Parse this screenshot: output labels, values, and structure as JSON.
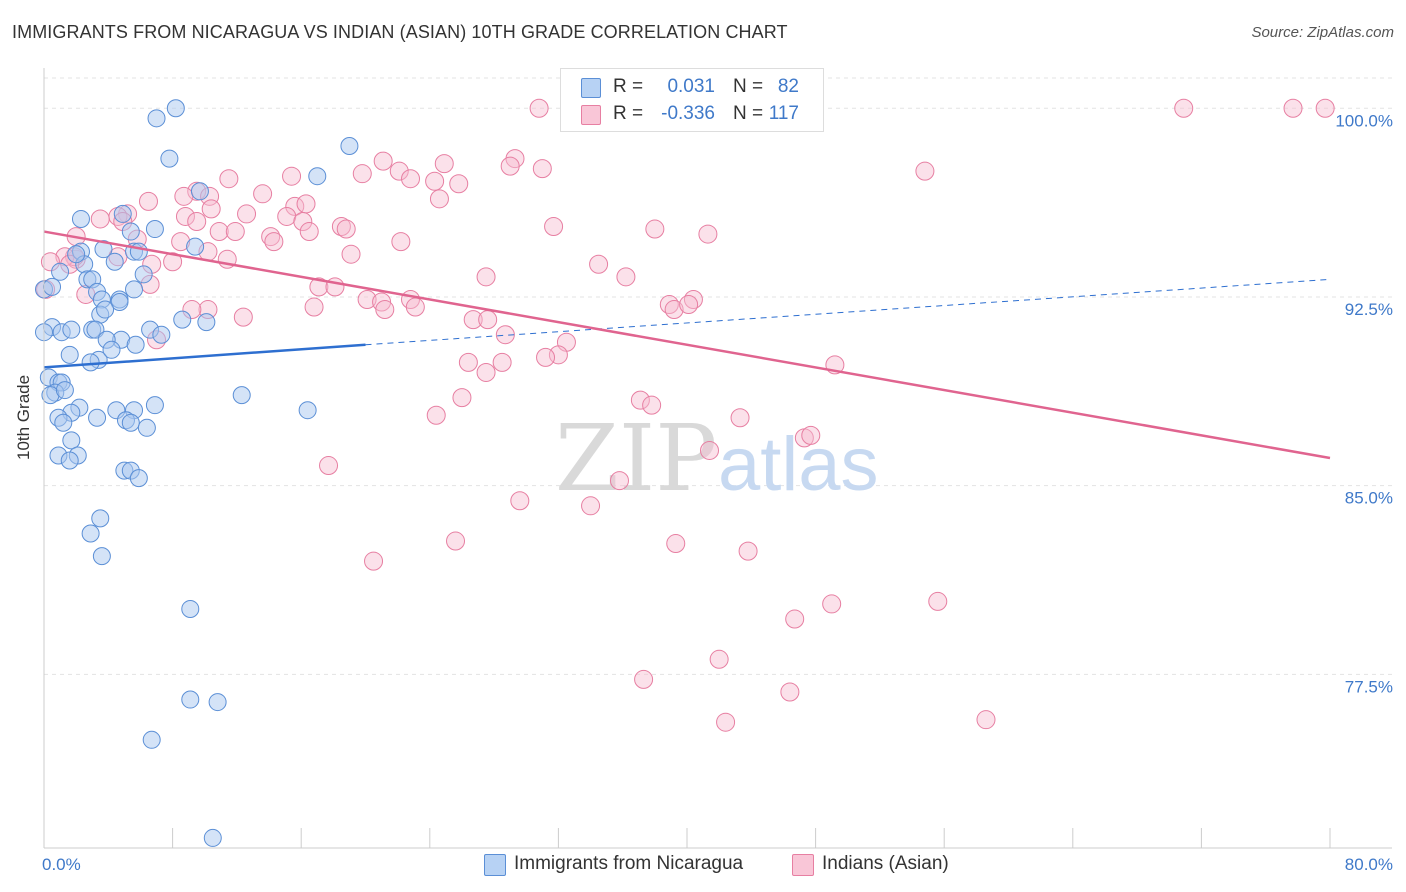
{
  "title": "IMMIGRANTS FROM NICARAGUA VS INDIAN (ASIAN) 10TH GRADE CORRELATION CHART",
  "source": "Source: ZipAtlas.com",
  "watermark": {
    "zip": "ZIP",
    "atlas": "atlas"
  },
  "colors": {
    "blue_fill": "#a9c8ef",
    "blue_stroke": "#5b8fd6",
    "blue_line": "#2e6fd0",
    "pink_fill": "#f7bcd0",
    "pink_stroke": "#e77fa2",
    "pink_line": "#e0648f",
    "tick_text": "#3f79c9",
    "grid": "#e3e3e3"
  },
  "legend": {
    "rows": [
      {
        "r_label": "R =",
        "r_value": "0.031",
        "n_label": "N =",
        "n_value": "82"
      },
      {
        "r_label": "R =",
        "r_value": "-0.336",
        "n_label": "N =",
        "n_value": "117"
      }
    ]
  },
  "chart_data": {
    "type": "scatter",
    "title": "IMMIGRANTS FROM NICARAGUA VS INDIAN (ASIAN) 10TH GRADE CORRELATION CHART",
    "xlabel": "",
    "ylabel": "10th Grade",
    "xlim": [
      0,
      80
    ],
    "ylim": [
      70.6,
      101.6
    ],
    "x_tick_labels": [
      "0.0%",
      "80.0%"
    ],
    "y_ticks": [
      77.5,
      85.0,
      92.5,
      100.0
    ],
    "y_tick_labels": [
      "77.5%",
      "85.0%",
      "92.5%",
      "100.0%"
    ],
    "grid": true,
    "legend_placement": "top-center",
    "series": [
      {
        "name": "Immigrants from Nicaragua",
        "color": "#a9c8ef",
        "trend": {
          "x0": 0,
          "y0": 89.7,
          "x1": 20,
          "y1": 90.6,
          "dashed_to_x": 80,
          "dashed_to_y": 93.2
        },
        "points": [
          [
            8.2,
            100.0
          ],
          [
            7.0,
            99.6
          ],
          [
            7.8,
            98.0
          ],
          [
            19.0,
            98.5
          ],
          [
            17.0,
            97.3
          ],
          [
            9.7,
            96.7
          ],
          [
            4.9,
            95.8
          ],
          [
            2.3,
            95.6
          ],
          [
            6.9,
            95.2
          ],
          [
            5.4,
            95.1
          ],
          [
            9.4,
            94.5
          ],
          [
            2.3,
            94.3
          ],
          [
            5.6,
            94.3
          ],
          [
            5.9,
            94.3
          ],
          [
            3.7,
            94.4
          ],
          [
            4.4,
            93.9
          ],
          [
            2.5,
            93.8
          ],
          [
            6.2,
            93.4
          ],
          [
            2.7,
            93.2
          ],
          [
            3.0,
            93.2
          ],
          [
            0.0,
            92.8
          ],
          [
            3.3,
            92.7
          ],
          [
            5.6,
            92.8
          ],
          [
            3.6,
            92.4
          ],
          [
            4.7,
            92.4
          ],
          [
            4.7,
            92.3
          ],
          [
            3.5,
            91.8
          ],
          [
            8.6,
            91.6
          ],
          [
            10.1,
            91.5
          ],
          [
            0.5,
            91.3
          ],
          [
            1.1,
            91.1
          ],
          [
            0.0,
            91.1
          ],
          [
            1.7,
            91.2
          ],
          [
            3.0,
            91.2
          ],
          [
            3.2,
            91.2
          ],
          [
            6.6,
            91.2
          ],
          [
            7.3,
            91.0
          ],
          [
            4.8,
            90.8
          ],
          [
            3.9,
            90.8
          ],
          [
            5.7,
            90.6
          ],
          [
            1.6,
            90.2
          ],
          [
            3.4,
            90.0
          ],
          [
            2.9,
            89.9
          ],
          [
            0.3,
            89.3
          ],
          [
            0.9,
            89.1
          ],
          [
            1.1,
            89.1
          ],
          [
            0.7,
            88.7
          ],
          [
            0.4,
            88.6
          ],
          [
            12.3,
            88.6
          ],
          [
            6.9,
            88.2
          ],
          [
            2.2,
            88.1
          ],
          [
            1.7,
            87.9
          ],
          [
            4.5,
            88.0
          ],
          [
            5.6,
            88.0
          ],
          [
            16.4,
            88.0
          ],
          [
            0.9,
            87.7
          ],
          [
            3.3,
            87.7
          ],
          [
            5.1,
            87.6
          ],
          [
            1.2,
            87.5
          ],
          [
            5.4,
            87.5
          ],
          [
            6.4,
            87.3
          ],
          [
            1.7,
            86.8
          ],
          [
            0.9,
            86.2
          ],
          [
            2.1,
            86.2
          ],
          [
            1.6,
            86.0
          ],
          [
            5.0,
            85.6
          ],
          [
            5.4,
            85.6
          ],
          [
            5.9,
            85.3
          ],
          [
            3.5,
            83.7
          ],
          [
            2.9,
            83.1
          ],
          [
            3.6,
            82.2
          ],
          [
            9.1,
            80.1
          ],
          [
            9.1,
            76.5
          ],
          [
            10.8,
            76.4
          ],
          [
            6.7,
            74.9
          ],
          [
            10.5,
            71.0
          ],
          [
            0.5,
            92.9
          ],
          [
            1.0,
            93.5
          ],
          [
            2.0,
            94.2
          ],
          [
            3.8,
            92.0
          ],
          [
            4.2,
            90.4
          ],
          [
            1.3,
            88.8
          ]
        ]
      },
      {
        "name": "Indians (Asian)",
        "color": "#f7bcd0",
        "trend": {
          "x0": 0,
          "y0": 95.1,
          "x1": 80,
          "y1": 86.1
        },
        "points": [
          [
            30.8,
            100.0
          ],
          [
            47.8,
            100.0
          ],
          [
            70.9,
            100.0
          ],
          [
            77.7,
            100.0
          ],
          [
            79.7,
            100.0
          ],
          [
            21.1,
            97.9
          ],
          [
            24.9,
            97.8
          ],
          [
            29.3,
            98.0
          ],
          [
            29.0,
            97.7
          ],
          [
            31.0,
            97.6
          ],
          [
            22.1,
            97.5
          ],
          [
            22.8,
            97.2
          ],
          [
            24.3,
            97.1
          ],
          [
            25.8,
            97.0
          ],
          [
            19.8,
            97.4
          ],
          [
            15.4,
            97.3
          ],
          [
            11.5,
            97.2
          ],
          [
            54.8,
            97.5
          ],
          [
            6.5,
            96.3
          ],
          [
            9.5,
            96.7
          ],
          [
            10.3,
            96.5
          ],
          [
            13.6,
            96.6
          ],
          [
            8.7,
            96.5
          ],
          [
            15.6,
            96.1
          ],
          [
            16.3,
            96.2
          ],
          [
            24.6,
            96.4
          ],
          [
            10.4,
            96.0
          ],
          [
            5.2,
            95.8
          ],
          [
            12.6,
            95.8
          ],
          [
            8.8,
            95.7
          ],
          [
            4.6,
            95.7
          ],
          [
            3.5,
            95.6
          ],
          [
            15.1,
            95.7
          ],
          [
            4.9,
            95.5
          ],
          [
            9.5,
            95.5
          ],
          [
            16.1,
            95.5
          ],
          [
            18.5,
            95.3
          ],
          [
            31.7,
            95.3
          ],
          [
            10.9,
            95.1
          ],
          [
            11.9,
            95.1
          ],
          [
            16.5,
            95.1
          ],
          [
            18.8,
            95.2
          ],
          [
            38.0,
            95.2
          ],
          [
            41.3,
            95.0
          ],
          [
            14.1,
            94.9
          ],
          [
            5.8,
            94.8
          ],
          [
            2.0,
            94.9
          ],
          [
            8.5,
            94.7
          ],
          [
            14.3,
            94.7
          ],
          [
            22.2,
            94.7
          ],
          [
            10.2,
            94.3
          ],
          [
            11.4,
            94.0
          ],
          [
            4.6,
            94.1
          ],
          [
            2.0,
            94.0
          ],
          [
            1.9,
            94.1
          ],
          [
            1.3,
            94.1
          ],
          [
            0.4,
            93.9
          ],
          [
            1.6,
            93.8
          ],
          [
            6.7,
            93.8
          ],
          [
            8.0,
            93.9
          ],
          [
            19.1,
            94.2
          ],
          [
            34.5,
            93.8
          ],
          [
            27.5,
            93.3
          ],
          [
            36.2,
            93.3
          ],
          [
            6.6,
            93.0
          ],
          [
            17.1,
            92.9
          ],
          [
            18.1,
            92.9
          ],
          [
            0.1,
            92.8
          ],
          [
            2.6,
            92.6
          ],
          [
            20.1,
            92.4
          ],
          [
            21.0,
            92.3
          ],
          [
            22.8,
            92.4
          ],
          [
            38.9,
            92.2
          ],
          [
            40.4,
            92.4
          ],
          [
            16.8,
            92.1
          ],
          [
            21.2,
            92.0
          ],
          [
            23.1,
            92.1
          ],
          [
            39.2,
            92.0
          ],
          [
            40.1,
            92.2
          ],
          [
            10.2,
            92.0
          ],
          [
            12.4,
            91.7
          ],
          [
            26.7,
            91.6
          ],
          [
            27.6,
            91.6
          ],
          [
            28.7,
            91.0
          ],
          [
            32.5,
            90.7
          ],
          [
            7.0,
            90.8
          ],
          [
            32.0,
            90.2
          ],
          [
            31.2,
            90.1
          ],
          [
            26.4,
            89.9
          ],
          [
            28.5,
            89.9
          ],
          [
            49.2,
            89.8
          ],
          [
            27.5,
            89.5
          ],
          [
            37.1,
            88.4
          ],
          [
            26.0,
            88.5
          ],
          [
            37.8,
            88.2
          ],
          [
            24.4,
            87.8
          ],
          [
            43.3,
            87.7
          ],
          [
            47.3,
            86.9
          ],
          [
            47.7,
            87.0
          ],
          [
            41.4,
            86.4
          ],
          [
            17.7,
            85.8
          ],
          [
            35.8,
            85.2
          ],
          [
            29.6,
            84.4
          ],
          [
            34.0,
            84.2
          ],
          [
            25.6,
            82.8
          ],
          [
            39.3,
            82.7
          ],
          [
            43.8,
            82.4
          ],
          [
            20.5,
            82.0
          ],
          [
            49.0,
            80.3
          ],
          [
            55.6,
            80.4
          ],
          [
            46.7,
            79.7
          ],
          [
            42.0,
            78.1
          ],
          [
            37.3,
            77.3
          ],
          [
            46.4,
            76.8
          ],
          [
            42.4,
            75.6
          ],
          [
            58.6,
            75.7
          ],
          [
            9.2,
            92.0
          ]
        ]
      }
    ]
  },
  "bottom_legend": [
    {
      "label": "Immigrants from Nicaragua",
      "color": "#a9c8ef",
      "stroke": "#5b8fd6"
    },
    {
      "label": "Indians (Asian)",
      "color": "#f7bcd0",
      "stroke": "#e77fa2"
    }
  ]
}
